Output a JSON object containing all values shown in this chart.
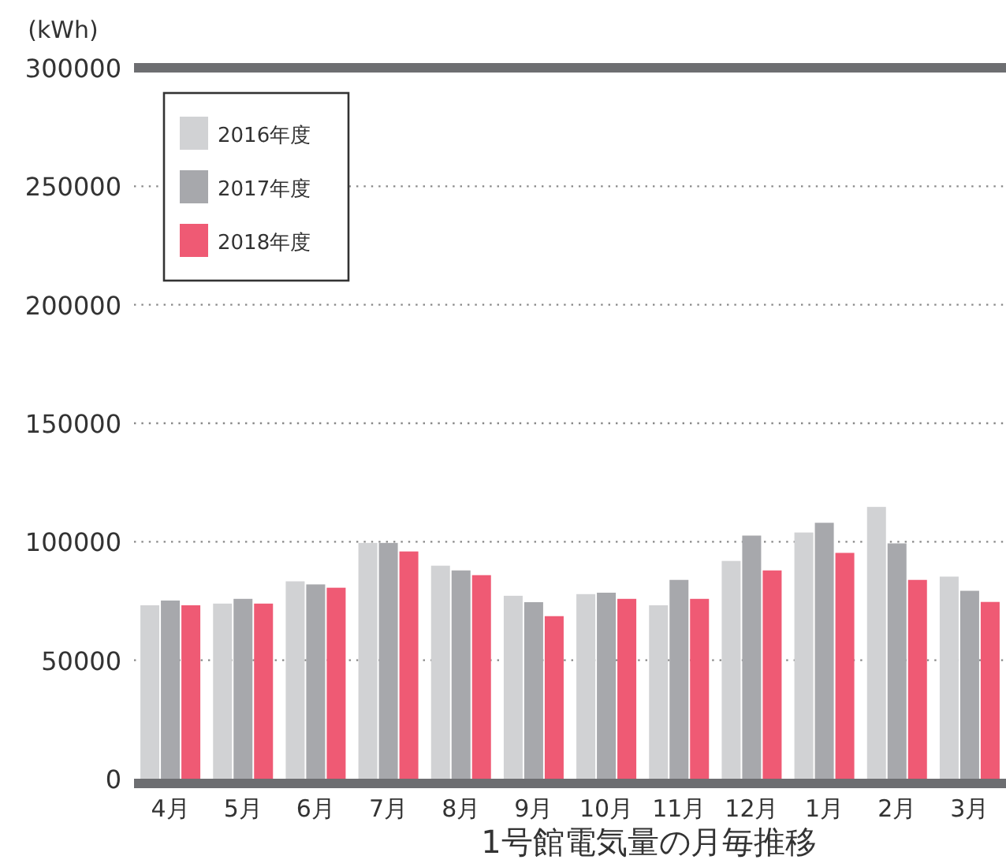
{
  "chart_data": {
    "type": "bar",
    "xlabel": "1号館電気量の月毎推移",
    "ylabel": "(kWh)",
    "categories": [
      "4月",
      "5月",
      "6月",
      "7月",
      "8月",
      "9月",
      "10月",
      "11月",
      "12月",
      "1月",
      "2月",
      "3月"
    ],
    "series": [
      {
        "name": "2016年度",
        "color": "#d1d2d4",
        "values": [
          73200,
          73900,
          83300,
          99500,
          89900,
          77200,
          77900,
          73200,
          91900,
          103900,
          114700,
          85300
        ]
      },
      {
        "name": "2017年度",
        "color": "#a7a8ac",
        "values": [
          75200,
          75900,
          82000,
          99500,
          87900,
          74500,
          78500,
          83900,
          102600,
          108000,
          99300,
          79300
        ]
      },
      {
        "name": "2018年度",
        "color": "#ef5a74",
        "values": [
          73200,
          73900,
          80600,
          95900,
          85900,
          68600,
          75900,
          75900,
          87900,
          95300,
          83900,
          74600
        ]
      }
    ],
    "ylim": [
      0,
      300000
    ],
    "yticks": [
      0,
      50000,
      100000,
      150000,
      200000,
      250000,
      300000
    ],
    "grid": "y",
    "legend": "top left"
  }
}
